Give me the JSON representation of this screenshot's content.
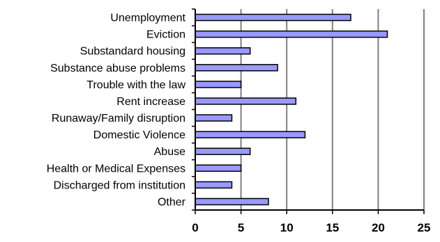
{
  "chart_data": {
    "type": "bar",
    "orientation": "horizontal",
    "categories": [
      "Unemployment",
      "Eviction",
      "Substandard  housing",
      "Substance abuse problems",
      "Trouble with the law",
      "Rent increase",
      "Runaway/Family disruption",
      "Domestic Violence",
      "Abuse",
      "Health or Medical Expenses",
      "Discharged from institution",
      "Other"
    ],
    "values": [
      17,
      21,
      6,
      9,
      5,
      11,
      4,
      12,
      6,
      5,
      4,
      8
    ],
    "xlim": [
      0,
      25
    ],
    "xticks": [
      0,
      5,
      10,
      15,
      20,
      25
    ],
    "grid": "vertical",
    "legend": "none",
    "colors": {
      "bar_fill": "#9999ff",
      "bar_stroke": "#000000",
      "grid": "#808080",
      "axis": "#000000"
    }
  }
}
